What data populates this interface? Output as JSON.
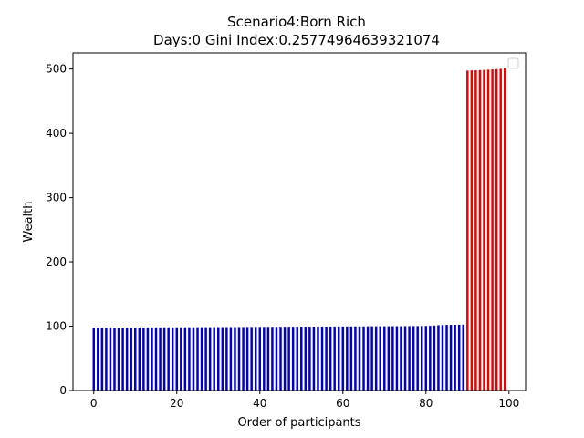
{
  "chart_data": {
    "type": "bar",
    "title_line1": "Scenario4:Born Rich",
    "title_line2": "Days:0  Gini Index:0.25774964639321074",
    "xlabel": "Order of participants",
    "ylabel": "Wealth",
    "xlim": [
      -5,
      104
    ],
    "ylim": [
      0,
      525
    ],
    "xticks": [
      0,
      20,
      40,
      60,
      80,
      100
    ],
    "yticks": [
      0,
      100,
      200,
      300,
      400,
      500
    ],
    "legend": {
      "placement": "top-right",
      "entries": []
    },
    "colors": {
      "poor": "#0000cc",
      "rich": "#ee0000"
    },
    "series": [
      {
        "color": "poor",
        "x": [
          0,
          1,
          2,
          3,
          4,
          5,
          6,
          7,
          8,
          9,
          10,
          11,
          12,
          13,
          14,
          15,
          16,
          17,
          18,
          19,
          20,
          21,
          22,
          23,
          24,
          25,
          26,
          27,
          28,
          29,
          30,
          31,
          32,
          33,
          34,
          35,
          36,
          37,
          38,
          39,
          40,
          41,
          42,
          43,
          44,
          45,
          46,
          47,
          48,
          49,
          50,
          51,
          52,
          53,
          54,
          55,
          56,
          57,
          58,
          59,
          60,
          61,
          62,
          63,
          64,
          65,
          66,
          67,
          68,
          69,
          70,
          71,
          72,
          73,
          74,
          75,
          76,
          77,
          78,
          79,
          80,
          81,
          82,
          83,
          84,
          85,
          86,
          87,
          88,
          89
        ],
        "values": [
          97.6,
          97.7,
          97.7,
          97.8,
          97.8,
          97.8,
          97.9,
          97.9,
          97.9,
          98.0,
          98.0,
          98.0,
          98.0,
          98.1,
          98.1,
          98.1,
          98.1,
          98.2,
          98.2,
          98.2,
          98.2,
          98.3,
          98.3,
          98.3,
          98.3,
          98.4,
          98.4,
          98.4,
          98.4,
          98.5,
          98.5,
          98.5,
          98.6,
          98.6,
          98.6,
          98.7,
          98.7,
          98.8,
          98.8,
          98.9,
          98.9,
          98.9,
          99.0,
          99.0,
          99.0,
          99.1,
          99.1,
          99.1,
          99.2,
          99.2,
          99.2,
          99.3,
          99.3,
          99.3,
          99.4,
          99.4,
          99.4,
          99.5,
          99.5,
          99.5,
          99.6,
          99.6,
          99.6,
          99.7,
          99.7,
          99.7,
          99.8,
          99.8,
          99.8,
          99.9,
          99.9,
          99.9,
          100.0,
          100.0,
          100.0,
          100.1,
          100.1,
          100.2,
          100.2,
          100.3,
          100.4,
          100.6,
          101.0,
          101.5,
          101.8,
          102.0,
          102.1,
          102.2,
          102.3,
          102.5
        ]
      },
      {
        "color": "rich",
        "x": [
          90,
          91,
          92,
          93,
          94,
          95,
          96,
          97,
          98,
          99
        ],
        "values": [
          497.5,
          497.8,
          498.0,
          498.3,
          498.6,
          499.0,
          499.4,
          499.8,
          500.4,
          501.3
        ]
      }
    ]
  }
}
